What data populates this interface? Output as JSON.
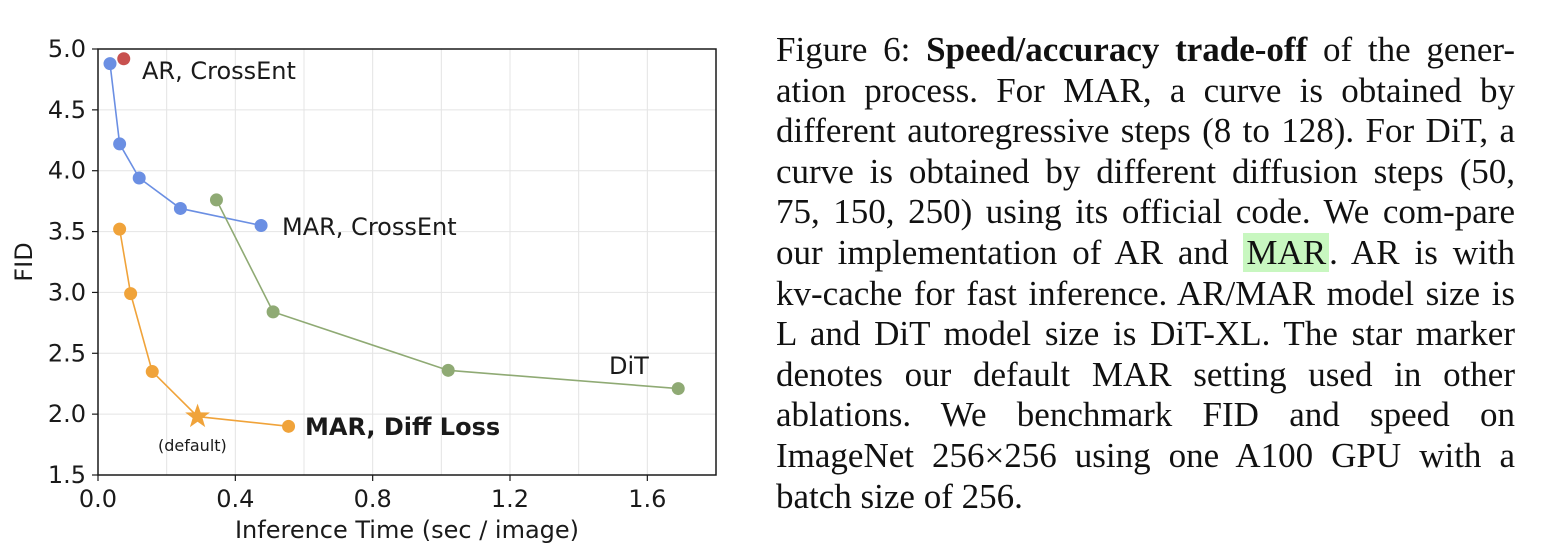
{
  "chart_data": {
    "type": "line",
    "xlabel": "Inference Time (sec / image)",
    "ylabel": "FID",
    "xlim": [
      0.0,
      1.8
    ],
    "ylim": [
      1.5,
      5.0
    ],
    "xticks": [
      "0.0",
      "0.4",
      "0.8",
      "1.2",
      "1.6"
    ],
    "yticks": [
      "1.5",
      "2.0",
      "2.5",
      "3.0",
      "3.5",
      "4.0",
      "4.5",
      "5.0"
    ],
    "grid": true,
    "series": [
      {
        "name": "AR, CrossEnt",
        "color": "#c8514f",
        "x": [
          0.075
        ],
        "y": [
          4.92
        ]
      },
      {
        "name": "MAR, CrossEnt",
        "color": "#6b8fe3",
        "x": [
          0.035,
          0.063,
          0.12,
          0.24,
          0.475
        ],
        "y": [
          4.88,
          4.22,
          3.94,
          3.69,
          3.55
        ]
      },
      {
        "name": "DiT",
        "color": "#8faa74",
        "x": [
          0.345,
          0.51,
          1.02,
          1.69
        ],
        "y": [
          3.76,
          2.84,
          2.36,
          2.21
        ]
      },
      {
        "name": "MAR, Diff Loss",
        "color": "#f0a33a",
        "x": [
          0.063,
          0.095,
          0.158,
          0.29,
          0.555
        ],
        "y": [
          3.52,
          2.99,
          2.35,
          1.98,
          1.9
        ],
        "star_index": 3
      }
    ],
    "annotations": {
      "ar_crossent": "AR, CrossEnt",
      "mar_crossent": "MAR, CrossEnt",
      "dit": "DiT",
      "mar_diffloss": "MAR, Diff Loss",
      "default": "(default)"
    }
  },
  "caption": {
    "label": "Figure 6:",
    "bold_title": "Speed/accuracy trade-off",
    "text_1": "of the gener-ation process. For MAR, a curve is obtained by different autoregressive steps (8 to 128). For DiT, a curve is obtained by different diffusion steps (50, 75, 150, 250) using its official code. We com-pare our implementation of AR and",
    "link": "MAR",
    "text_2": ". AR is with kv-cache for fast inference. AR/MAR model size is L and DiT model size is DiT-XL. The star marker denotes our default MAR setting used in other ablations. We benchmark FID and speed on ImageNet 256×256 using one A100 GPU with a batch size of 256."
  }
}
